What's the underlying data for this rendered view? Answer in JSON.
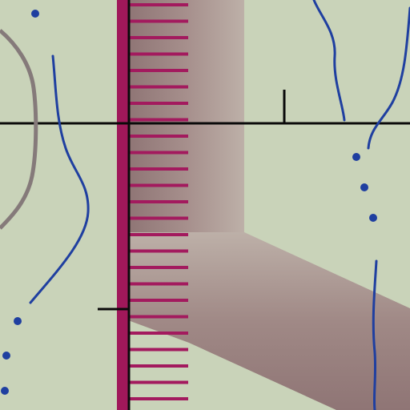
{
  "map": {
    "colors": {
      "background": "#c9d3b9",
      "road_band": "#9e8580",
      "railway": "#a0185a",
      "hatch": "#a31a5e",
      "gridline": "#000000",
      "river": "#1f3fa0",
      "contour": "#857a7a",
      "spring_dot": "#1f3fa0"
    },
    "features": {
      "road": "wide-road-band",
      "rail": "railway-with-crossties",
      "grid": "grid-crosshair",
      "waterways": "streams",
      "contour": "elevation-contour",
      "points": "spring-dots"
    }
  }
}
